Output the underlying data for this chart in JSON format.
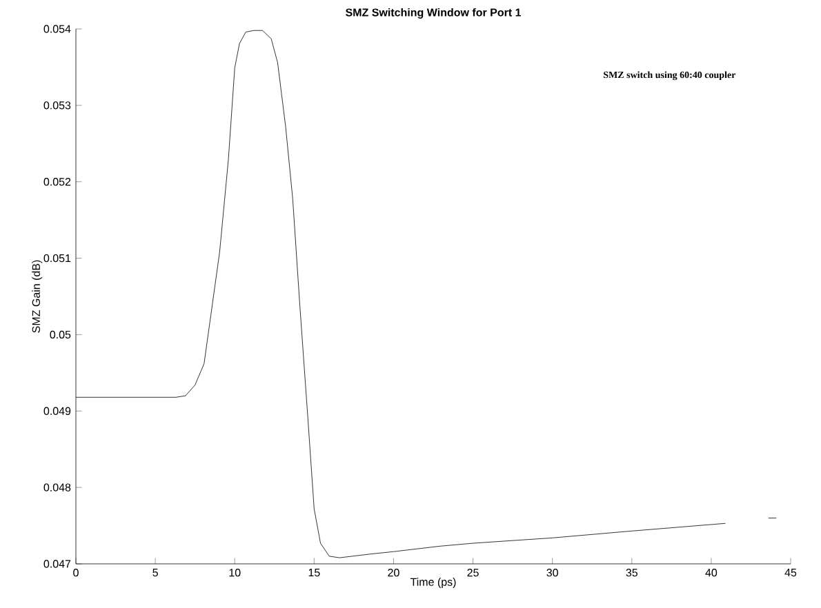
{
  "chart_data": {
    "type": "line",
    "title": "SMZ Switching Window for Port 1",
    "xlabel": "Time (ps)",
    "ylabel": "SMZ Gain (dB)",
    "annotations": [
      "SMZ switch using 60:40 coupler"
    ],
    "xlim": [
      0,
      45
    ],
    "ylim": [
      0.047,
      0.054
    ],
    "xticks": [
      0,
      5,
      10,
      15,
      20,
      25,
      30,
      35,
      40,
      45
    ],
    "yticks": [
      {
        "value": 0.047,
        "label": "0.047"
      },
      {
        "value": 0.048,
        "label": "0.048"
      },
      {
        "value": 0.049,
        "label": "0.049"
      },
      {
        "value": 0.05,
        "label": "0.05"
      },
      {
        "value": 0.051,
        "label": "0.051"
      },
      {
        "value": 0.052,
        "label": "0.052"
      },
      {
        "value": 0.053,
        "label": "0.053"
      },
      {
        "value": 0.054,
        "label": "0.054"
      }
    ],
    "grid": false,
    "series": [
      {
        "color": "#000000",
        "x": [
          0,
          6.3,
          6.9,
          7.5,
          8.07,
          8.5,
          9.05,
          9.6,
          10,
          10.3,
          10.7,
          11.2,
          11.75,
          12.3,
          12.7,
          13.2,
          13.65,
          14.1,
          14.6,
          15,
          15.4,
          15.95,
          16.6,
          18.6,
          20,
          22.85,
          25,
          30,
          35,
          40.9
        ],
        "values": [
          0.04918,
          0.04918,
          0.0492,
          0.04934,
          0.04962,
          0.05026,
          0.05108,
          0.05229,
          0.05349,
          0.05381,
          0.05396,
          0.05398,
          0.05398,
          0.05387,
          0.05356,
          0.05273,
          0.05178,
          0.05038,
          0.04892,
          0.04772,
          0.04727,
          0.0471,
          0.04708,
          0.04713,
          0.04716,
          0.04723,
          0.04727,
          0.04734,
          0.04743,
          0.04753
        ]
      },
      {
        "color": "#000000",
        "x": [
          43.6,
          44.1
        ],
        "values": [
          0.0476,
          0.0476
        ]
      }
    ]
  }
}
